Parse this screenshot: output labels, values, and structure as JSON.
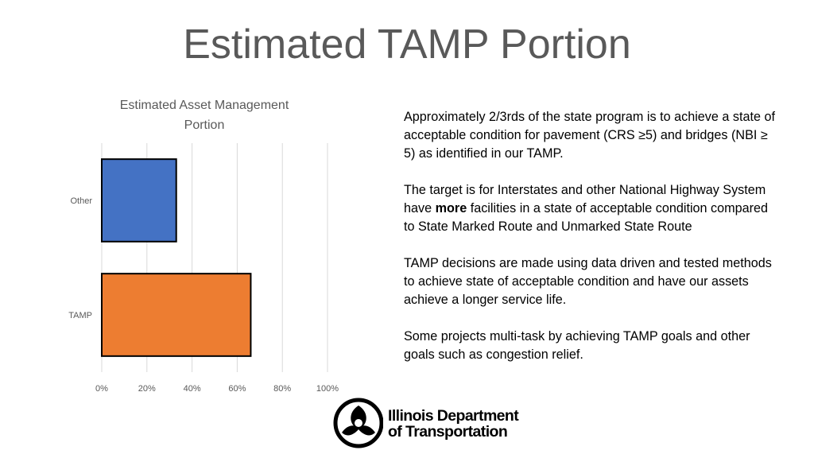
{
  "slide": {
    "title": "Estimated TAMP Portion"
  },
  "chart_data": {
    "type": "bar",
    "orientation": "horizontal",
    "title": "Estimated Asset Management Portion",
    "title_lines": [
      "Estimated Asset Management",
      "Portion"
    ],
    "categories": [
      "Other",
      "TAMP"
    ],
    "values": [
      33,
      66
    ],
    "colors": [
      "#4472C4",
      "#ED7D31"
    ],
    "xlim": [
      0,
      100
    ],
    "x_ticks": [
      0,
      20,
      40,
      60,
      80,
      100
    ],
    "x_tick_labels": [
      "0%",
      "20%",
      "40%",
      "60%",
      "80%",
      "100%"
    ],
    "xlabel": "",
    "ylabel": "",
    "grid": true
  },
  "text": {
    "para1": "Approximately 2/3rds of the state program is to achieve a state of acceptable condition for pavement (CRS ≥5) and bridges (NBI ≥ 5) as identified in our TAMP.",
    "para2_before": "The target is for Interstates and other National Highway System have ",
    "para2_bold": "more",
    "para2_after": " facilities in a state of acceptable condition compared to State Marked Route and Unmarked State Route",
    "para3": "TAMP decisions are made using data driven and tested methods to achieve state of acceptable condition and have our assets achieve a longer service life.",
    "para4": "Some projects multi-task by achieving TAMP goals and other goals such as congestion relief."
  },
  "logo": {
    "line1": "Illinois Department",
    "line2": "of Transportation"
  }
}
